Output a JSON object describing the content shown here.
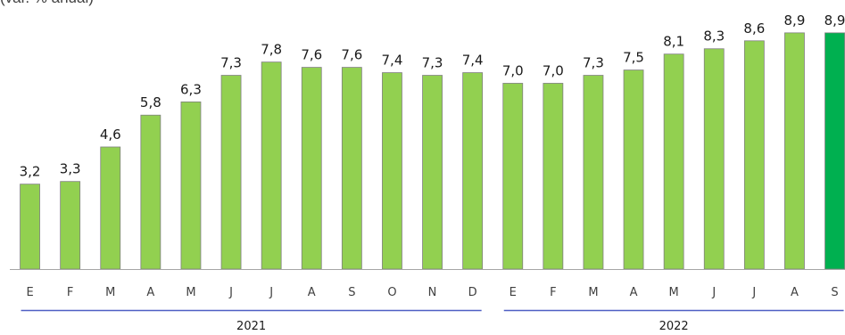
{
  "subtitle": "(var. % anual)",
  "chart_data": {
    "type": "bar",
    "categories": [
      "E",
      "F",
      "M",
      "A",
      "M",
      "J",
      "J",
      "A",
      "S",
      "O",
      "N",
      "D",
      "E",
      "F",
      "M",
      "A",
      "M",
      "J",
      "J",
      "A",
      "S"
    ],
    "values": [
      3.2,
      3.3,
      4.6,
      5.8,
      6.3,
      7.3,
      7.8,
      7.6,
      7.6,
      7.4,
      7.3,
      7.4,
      7.0,
      7.0,
      7.3,
      7.5,
      8.1,
      8.3,
      8.6,
      8.9,
      8.9
    ],
    "value_labels": [
      "3,2",
      "3,3",
      "4,6",
      "5,8",
      "6,3",
      "7,3",
      "7,8",
      "7,6",
      "7,6",
      "7,4",
      "7,3",
      "7,4",
      "7,0",
      "7,0",
      "7,3",
      "7,5",
      "8,1",
      "8,3",
      "8,6",
      "8,9",
      "8,9"
    ],
    "groups": [
      {
        "label": "2021",
        "start": 0,
        "end": 11
      },
      {
        "label": "2022",
        "start": 12,
        "end": 20
      }
    ],
    "ylim": [
      0,
      9.5
    ],
    "grid": false,
    "colors": {
      "bar": "#92d050",
      "highlight": "#00b050",
      "group_line": "#4f5fc4",
      "axis": "#a6a6a6"
    },
    "highlight_index": 20
  }
}
